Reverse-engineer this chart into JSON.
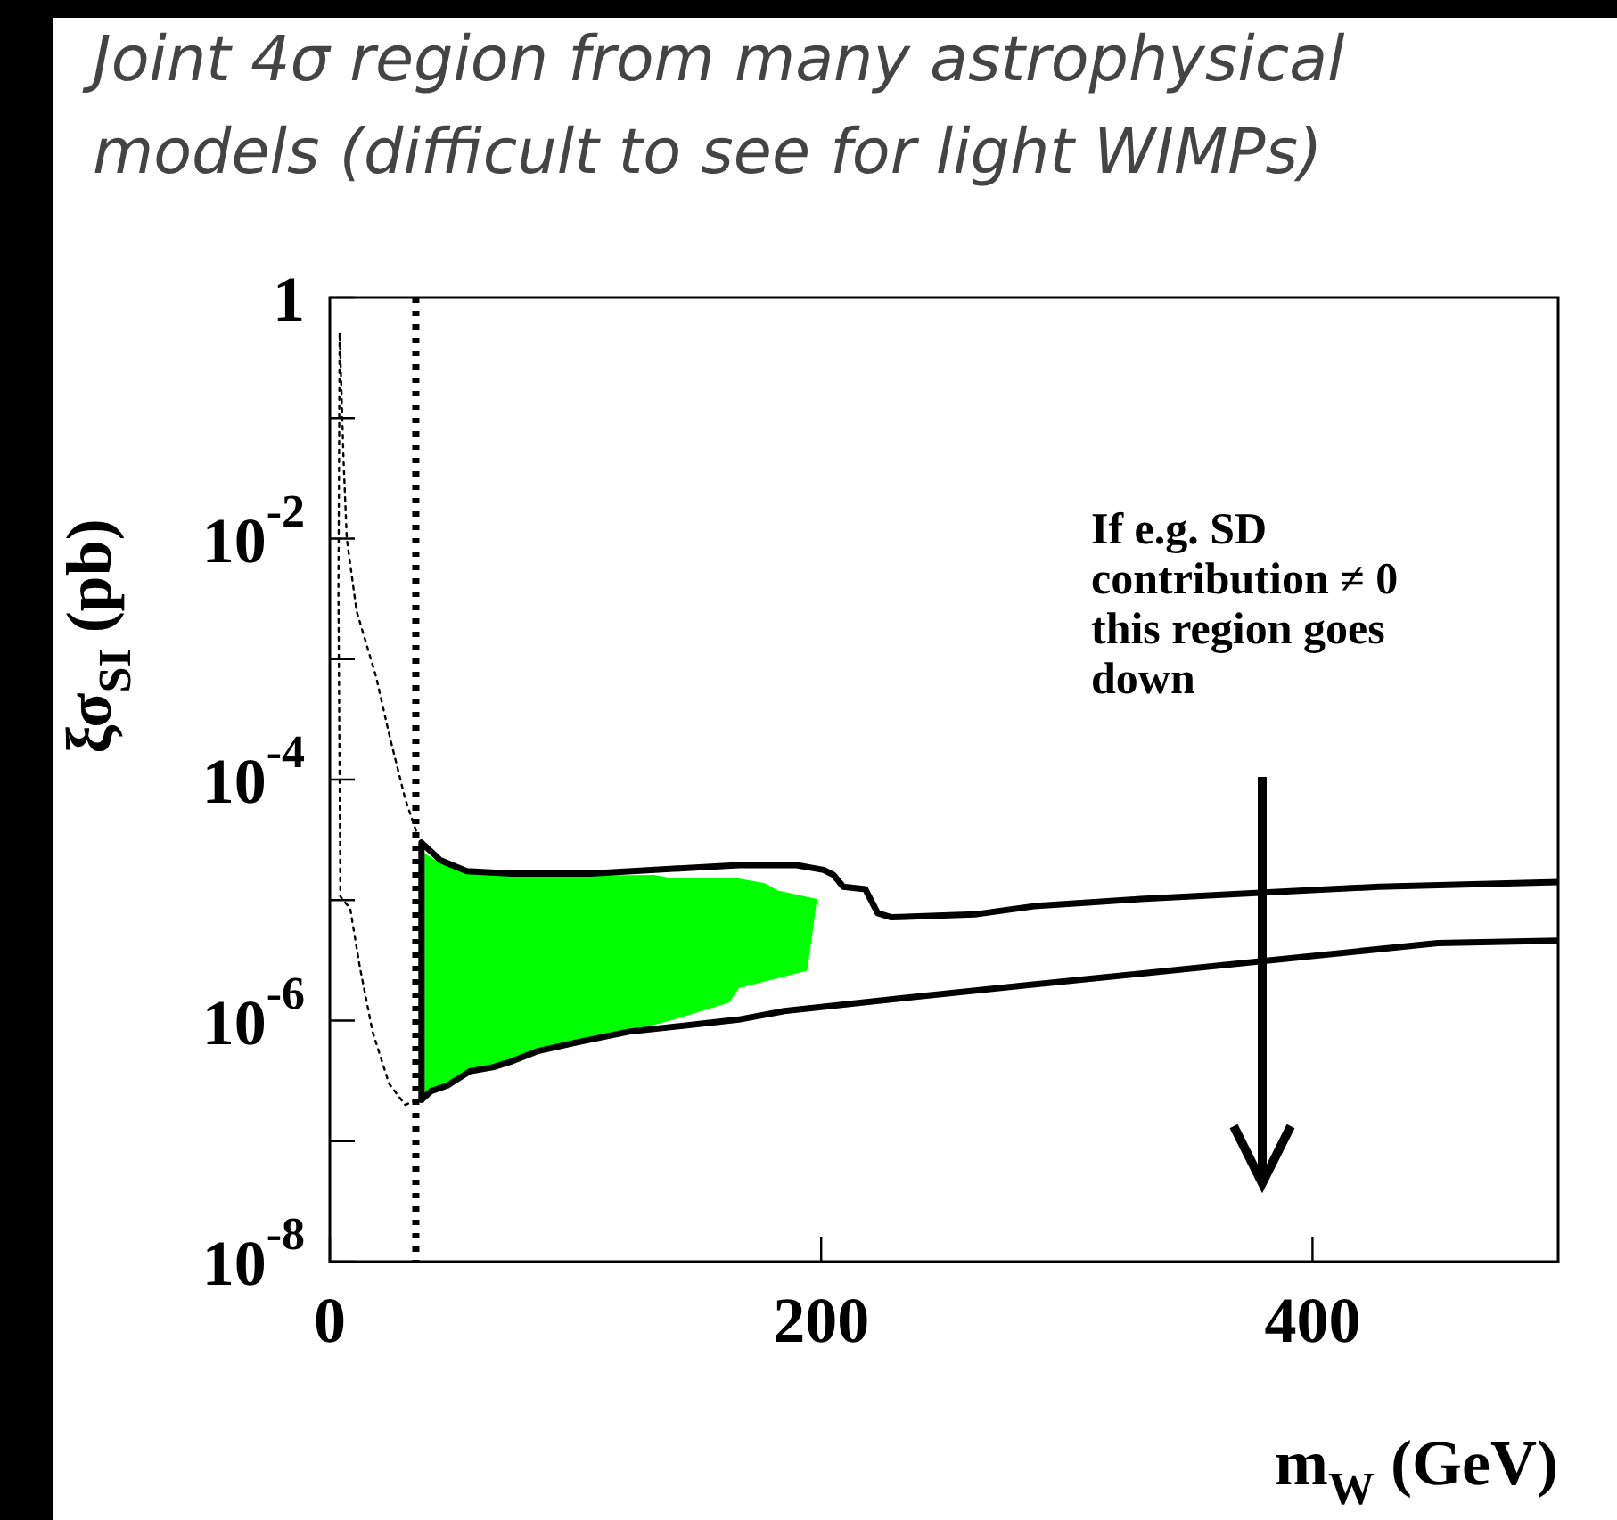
{
  "chart_data": {
    "type": "line",
    "title": "Joint 4σ region from many astrophysical models (difficult to see for light WIMPs)",
    "xlabel": "m$_{W}$ (GeV)",
    "ylabel": "ξσ$_{SI}$ (pb)",
    "log": "y",
    "grid": false,
    "legend": false,
    "marker": "none",
    "xlim": [
      0,
      500
    ],
    "xticks": [
      0,
      200,
      400
    ],
    "ylim": [
      1e-08,
      1
    ],
    "yticks": [
      {
        "value": 1e-08,
        "label": "10$^{-8}$"
      },
      {
        "value": 1e-07,
        "label": null
      },
      {
        "value": 1e-06,
        "label": "10$^{-6}$"
      },
      {
        "value": 1e-05,
        "label": null
      },
      {
        "value": 0.0001,
        "label": "10$^{-4}$"
      },
      {
        "value": 0.001,
        "label": null
      },
      {
        "value": 0.01,
        "label": "10$^{-2}$"
      },
      {
        "value": 0.1,
        "label": null
      },
      {
        "value": 1,
        "label": "1"
      }
    ],
    "ref_lines": [
      {
        "axis": "x",
        "value": 35,
        "line_style": "dotted",
        "color": "#000000"
      }
    ],
    "annotations": [
      "If e.g. SD contribution ≠ 0 this region goes down"
    ],
    "series": [
      {
        "type": "area",
        "color": "#00ff00",
        "x": [
          36.7,
          45.2,
          55.7,
          74,
          132,
          140,
          166.5,
          177,
          182.4,
          198.3,
          194.3,
          166.5,
          162.5,
          140,
          121.7,
          100.6,
          84.8,
          74.2,
          57,
          47.9,
          36.7
        ],
        "values": [
          2.6e-05,
          2e-05,
          1.66e-05,
          1.58e-05,
          1.62e-05,
          1.51e-05,
          1.51e-05,
          1.38e-05,
          1.2e-05,
          1.02e-05,
          2.6e-06,
          1.86e-06,
          1.41e-06,
          1.02e-06,
          8.1e-07,
          6.6e-07,
          5.6e-07,
          4.6e-07,
          3.8e-07,
          2.9e-07,
          2.2e-07
        ]
      },
      {
        "type": "line",
        "color": "#000000",
        "line_style": "solid",
        "x": [
          500,
          427,
          378.6,
          330,
          286.6,
          262.5,
          228.6,
          223,
          218,
          209,
          205,
          201,
          190,
          166.5,
          140,
          106,
          74,
          55.7,
          45,
          37.3,
          37.3,
          41.2,
          47.9,
          57,
          66.3,
          74.2,
          84.8,
          100.6,
          121.7,
          166.5,
          185,
          235,
          281.8,
          378.6,
          451,
          500
        ],
        "values": [
          1.41e-05,
          1.29e-05,
          1.15e-05,
          1.02e-05,
          8.9e-06,
          7.6e-06,
          7.2e-06,
          7.8e-06,
          1.23e-05,
          1.29e-05,
          1.62e-05,
          1.78e-05,
          1.95e-05,
          1.95e-05,
          1.82e-05,
          1.66e-05,
          1.66e-05,
          1.74e-05,
          2.14e-05,
          3e-05,
          2.2e-07,
          2.6e-07,
          2.9e-07,
          3.8e-07,
          4.1e-07,
          4.6e-07,
          5.6e-07,
          6.6e-07,
          8.1e-07,
          1.02e-06,
          1.2e-06,
          1.55e-06,
          1.95e-06,
          3.1e-06,
          4.4e-06,
          4.6e-06
        ]
      },
      {
        "type": "line",
        "color": "#000000",
        "line_style": "dotted",
        "x": [
          35.2,
          30.7,
          24.1,
          17.4,
          12.2,
          8.3,
          4.3,
          3.5,
          4,
          5.6,
          6.9,
          10.9,
          18.8,
          24.1,
          30.7,
          35.2
        ],
        "values": [
          2.2e-07,
          2e-07,
          3e-07,
          8.1e-07,
          2.8e-06,
          8.5e-06,
          1.07e-05,
          0.0036,
          0.51,
          0.044,
          0.01,
          0.0025,
          0.00072,
          0.00024,
          6.9e-05,
          3.7e-05
        ]
      }
    ]
  }
}
